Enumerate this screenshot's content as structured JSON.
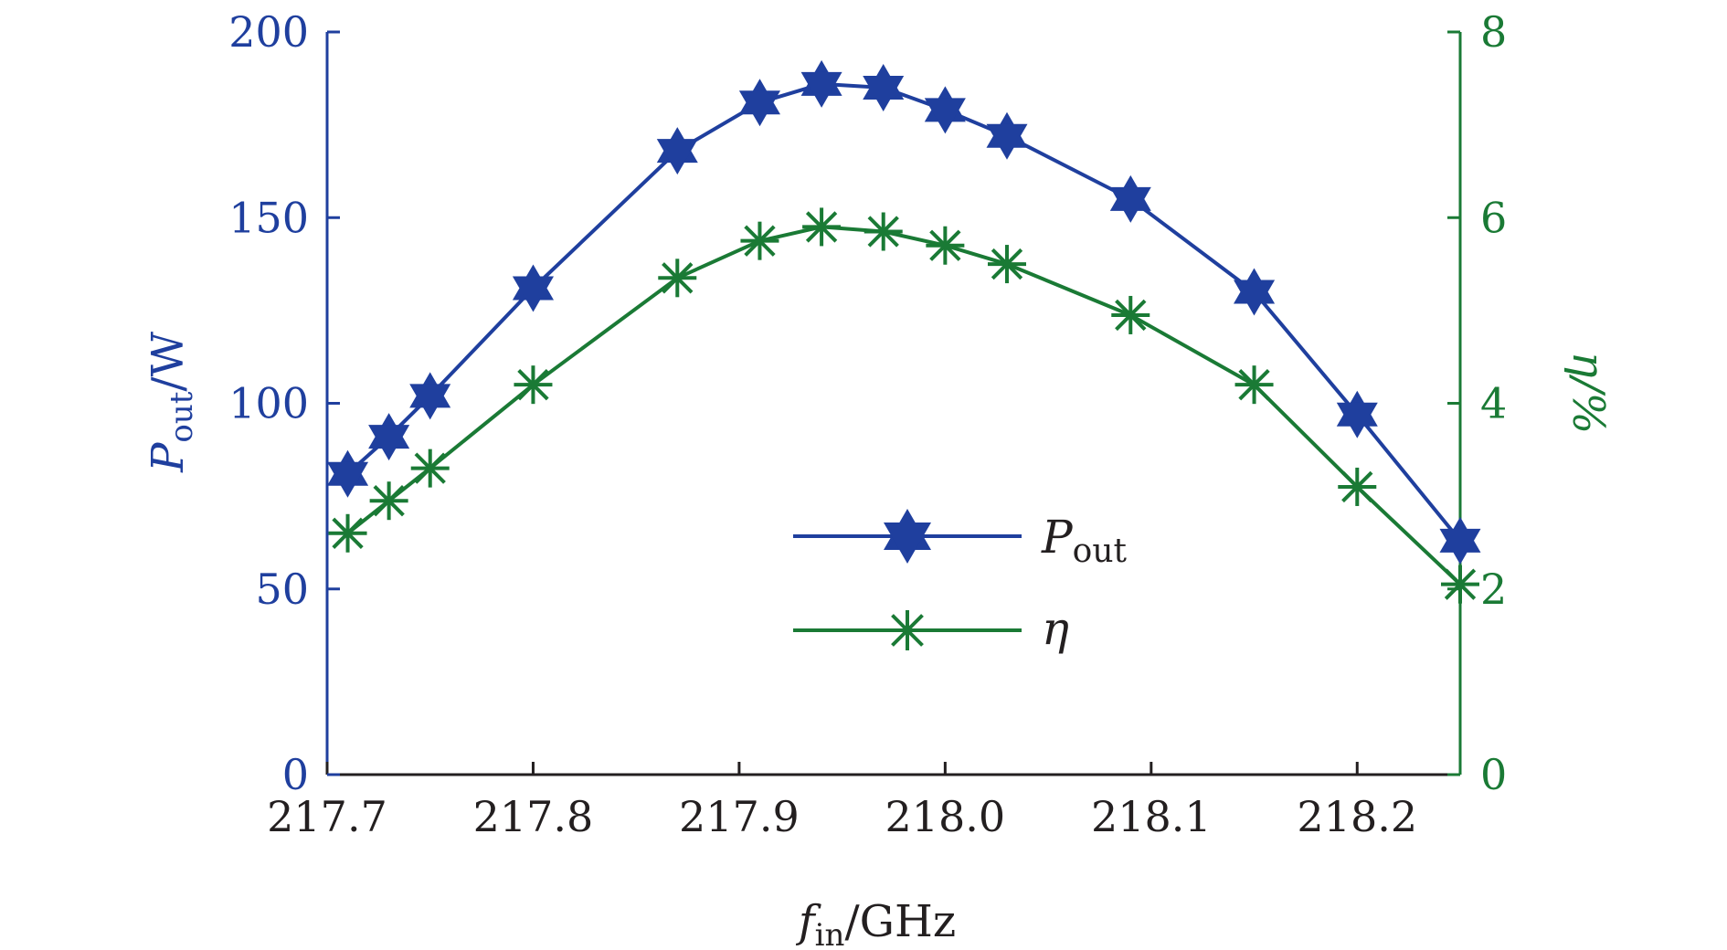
{
  "chart_data": {
    "type": "line",
    "title": "",
    "xlabel": {
      "main": "f",
      "sub": "in",
      "rest": "/GHz"
    },
    "ylabel_left": {
      "main": "P",
      "sub": "out",
      "rest": "/W"
    },
    "ylabel_right": "η/%",
    "xlim": [
      217.7,
      218.25
    ],
    "ylim_left": [
      0,
      200
    ],
    "ylim_right": [
      0,
      8
    ],
    "xticks": [
      "217.7",
      "217.8",
      "217.9",
      "218.0",
      "218.1",
      "218.2"
    ],
    "xtick_values": [
      217.7,
      217.8,
      217.9,
      218.0,
      218.1,
      218.2
    ],
    "yticks_left": [
      "0",
      "50",
      "100",
      "150",
      "200"
    ],
    "ytick_values_left": [
      0,
      50,
      100,
      150,
      200
    ],
    "yticks_right": [
      "0",
      "2",
      "4",
      "6",
      "8"
    ],
    "ytick_values_right": [
      0,
      2,
      4,
      6,
      8
    ],
    "legend_position": "center-right",
    "grid": false,
    "x": [
      217.71,
      217.73,
      217.75,
      217.8,
      217.87,
      217.91,
      217.94,
      217.97,
      218.0,
      218.03,
      218.09,
      218.15,
      218.2,
      218.25
    ],
    "series": [
      {
        "name": {
          "main": "P",
          "sub": "out"
        },
        "axis": "left",
        "marker": "hexagram",
        "color": "#1f3f9e",
        "values": [
          81,
          91,
          102,
          131,
          168,
          181,
          186,
          185,
          179,
          172,
          155,
          130,
          97,
          63
        ]
      },
      {
        "name": "η",
        "axis": "right",
        "marker": "asterisk",
        "color": "#1a7a35",
        "values": [
          2.6,
          2.95,
          3.3,
          4.2,
          5.35,
          5.75,
          5.9,
          5.85,
          5.7,
          5.5,
          4.95,
          4.2,
          3.1,
          2.05
        ]
      }
    ]
  }
}
